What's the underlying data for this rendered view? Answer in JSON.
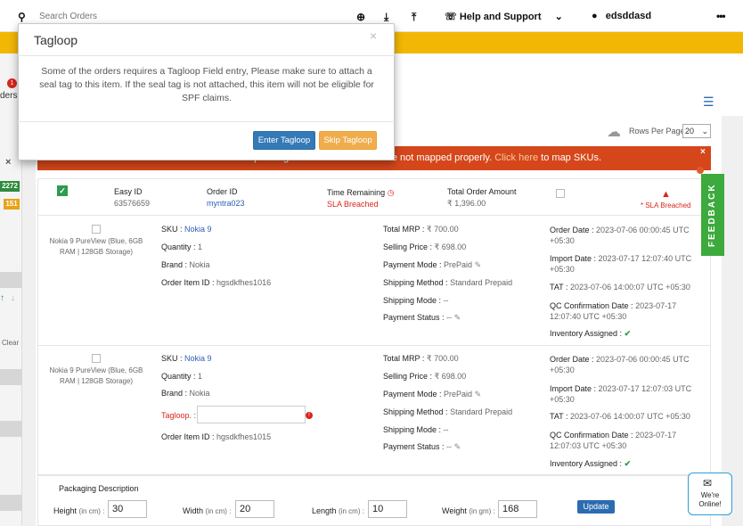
{
  "header": {
    "search_placeholder": "Search Orders",
    "help_label": "Help and Support",
    "user_name": "edsddasd",
    "more_label": "•••"
  },
  "left_panel": {
    "badge_count": "1",
    "orders_partial": "ders",
    "count_green": "2272",
    "count_orange": "151",
    "clear_label": "Clear",
    "close_label": "×"
  },
  "toolbar": {
    "rows_per_page_label": "Rows Per Page",
    "rows_per_page_value": "20"
  },
  "alert": {
    "text_before": "PT. T orders are in pending state as some SKUs are not mapped properly.",
    "link_text": "Click here",
    "text_after": "to map SKUs.",
    "close": "×"
  },
  "order": {
    "easy_id_label": "Easy ID",
    "easy_id": "63576659",
    "order_id_label": "Order ID",
    "order_id": "myntra023",
    "time_remaining_label": "Time Remaining",
    "sla_status": "SLA Breached",
    "total_label": "Total Order Amount",
    "total_value": "₹ 1,396.00",
    "sla_flag": "* SLA Breached"
  },
  "items": [
    {
      "product_name": "Nokia 9 PureView (Blue, 6GB RAM | 128GB Storage)",
      "sku_label": "SKU :",
      "sku": "Nokia 9",
      "quantity_label": "Quantity :",
      "quantity": "1",
      "brand_label": "Brand :",
      "brand": "Nokia",
      "order_item_label": "Order Item ID :",
      "order_item_id": "hgsdkfhes1016",
      "total_mrp_label": "Total MRP :",
      "total_mrp": "₹ 700.00",
      "selling_price_label": "Selling Price :",
      "selling_price": "₹ 698.00",
      "payment_mode_label": "Payment Mode :",
      "payment_mode": "PrePaid",
      "shipping_method_label": "Shipping Method :",
      "shipping_method": "Standard Prepaid",
      "shipping_mode_label": "Shipping Mode :",
      "shipping_mode": "--",
      "payment_status_label": "Payment Status :",
      "payment_status": "--",
      "order_date_label": "Order Date :",
      "order_date": "2023-07-06 00:00:45 UTC +05:30",
      "import_date_label": "Import Date :",
      "import_date": "2023-07-17 12:07:40 UTC +05:30",
      "tat_label": "TAT :",
      "tat": "2023-07-06 14:00:07 UTC +05:30",
      "qc_label": "QC Confirmation Date :",
      "qc_date": "2023-07-17 12:07:40 UTC +05:30",
      "inventory_label": "Inventory Assigned :",
      "inventory_ok": "✔"
    },
    {
      "product_name": "Nokia 9 PureView (Blue, 6GB RAM | 128GB Storage)",
      "sku_label": "SKU :",
      "sku": "Nokia 9",
      "quantity_label": "Quantity :",
      "quantity": "1",
      "brand_label": "Brand :",
      "brand": "Nokia",
      "tagloop_label": "Tagloop. :",
      "tagloop_value": "",
      "order_item_label": "Order Item ID :",
      "order_item_id": "hgsdkfhes1015",
      "total_mrp_label": "Total MRP :",
      "total_mrp": "₹ 700.00",
      "selling_price_label": "Selling Price :",
      "selling_price": "₹ 698.00",
      "payment_mode_label": "Payment Mode :",
      "payment_mode": "PrePaid",
      "shipping_method_label": "Shipping Method :",
      "shipping_method": "Standard Prepaid",
      "shipping_mode_label": "Shipping Mode :",
      "shipping_mode": "--",
      "payment_status_label": "Payment Status :",
      "payment_status": "--",
      "order_date_label": "Order Date :",
      "order_date": "2023-07-06 00:00:45 UTC +05:30",
      "import_date_label": "Import Date :",
      "import_date": "2023-07-17 12:07:03 UTC +05:30",
      "tat_label": "TAT :",
      "tat": "2023-07-06 14:00:07 UTC +05:30",
      "qc_label": "QC Confirmation Date :",
      "qc_date": "2023-07-17 12:07:03 UTC +05:30",
      "inventory_label": "Inventory Assigned :",
      "inventory_ok": "✔"
    }
  ],
  "packaging": {
    "title": "Packaging Description",
    "height_label": "Height",
    "width_label": "Width",
    "length_label": "Length",
    "weight_label": "Weight",
    "cm_unit": "(in cm) :",
    "gm_unit": "(in gm) :",
    "height": "30",
    "width": "20",
    "length": "10",
    "weight": "168",
    "update_label": "Update"
  },
  "feedback_label": "FEEDBACK",
  "chat": {
    "line1": "We're",
    "line2": "Online!"
  },
  "modal": {
    "title": "Tagloop",
    "close": "×",
    "body": "Some of the orders requires a Tagloop Field entry, Please make sure to attach a seal tag to this item. If the seal tag is not attached, this item will not be eligible for SPF claims.",
    "enter_label": "Enter Tagloop",
    "skip_label": "Skip Tagloop"
  },
  "colors": {
    "accent_yellow": "#f2b705",
    "alert_orange": "#d5471a",
    "primary_blue": "#337ab7",
    "warning_orange": "#f0ad4e",
    "feedback_green": "#3caa3c",
    "sla_red": "#d9251d"
  }
}
